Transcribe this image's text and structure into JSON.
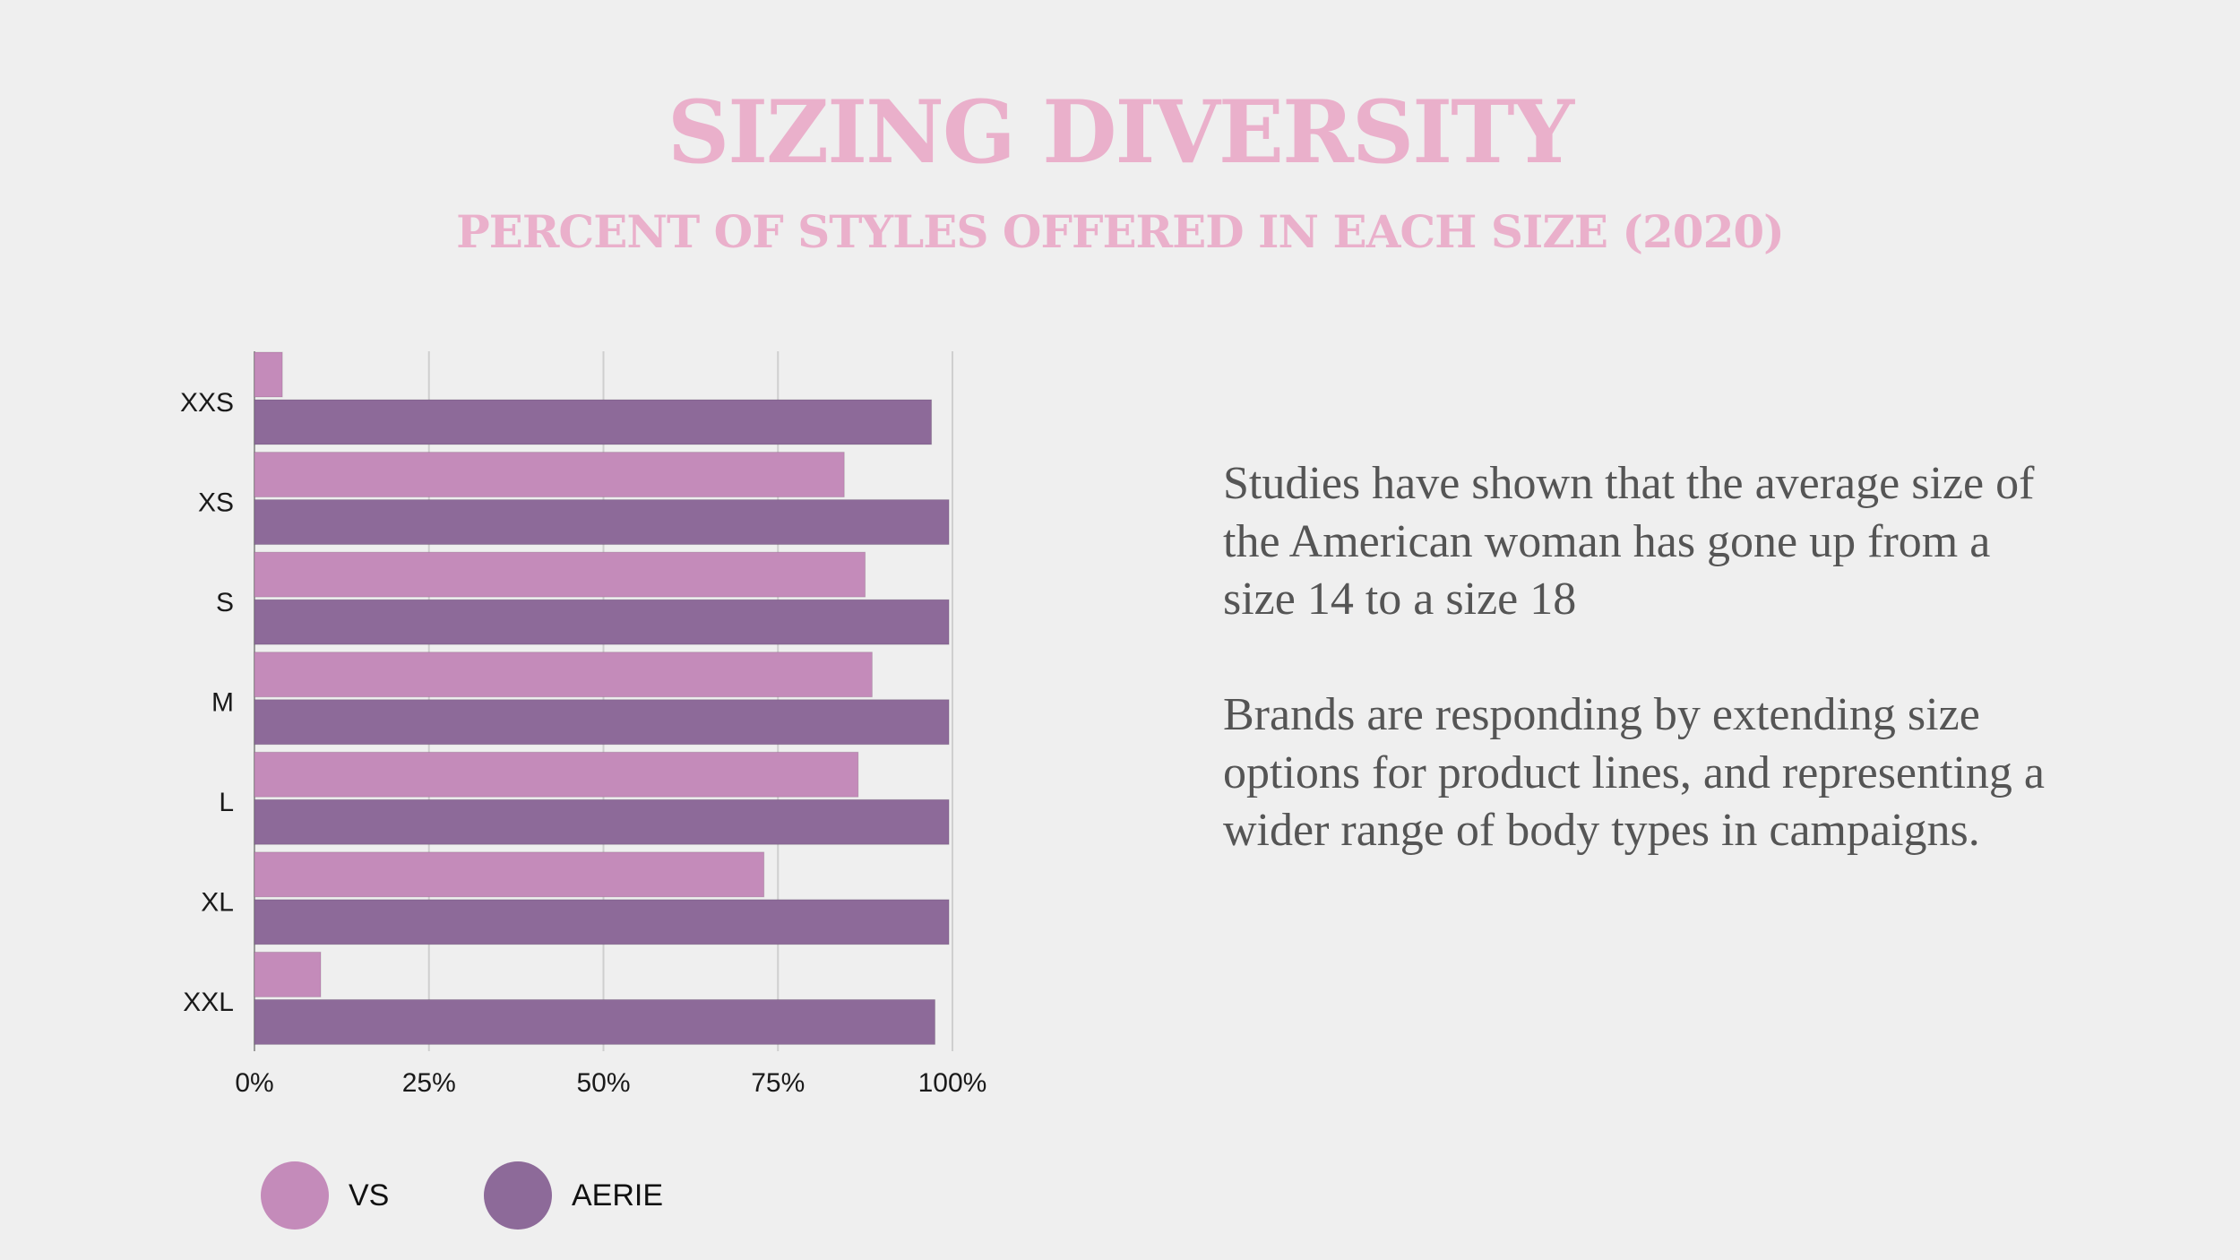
{
  "title": "SIZING DIVERSITY",
  "subtitle": "PERCENT OF STYLES OFFERED IN EACH SIZE (2020)",
  "body": {
    "paragraph1": "Studies have shown that the average size of the American woman has gone up from a size 14 to a size 18",
    "paragraph2": "Brands are responding by extending size options for product lines, and representing a wider range of body types in campaigns."
  },
  "chart_data": {
    "type": "bar",
    "orientation": "horizontal",
    "categories": [
      "XXS",
      "XS",
      "S",
      "M",
      "L",
      "XL",
      "XXL"
    ],
    "series": [
      {
        "name": "VS",
        "color": "#c48bba",
        "values": [
          4,
          84.5,
          87.5,
          88.5,
          86.5,
          73,
          9.5
        ]
      },
      {
        "name": "AERIE",
        "color": "#8d6a99",
        "values": [
          97,
          99.5,
          99.5,
          99.5,
          99.5,
          99.5,
          97.5
        ]
      }
    ],
    "x_ticks": [
      "0%",
      "25%",
      "50%",
      "75%",
      "100%"
    ],
    "xlim": [
      0,
      100
    ],
    "grid": true,
    "legend_position": "bottom-left"
  }
}
